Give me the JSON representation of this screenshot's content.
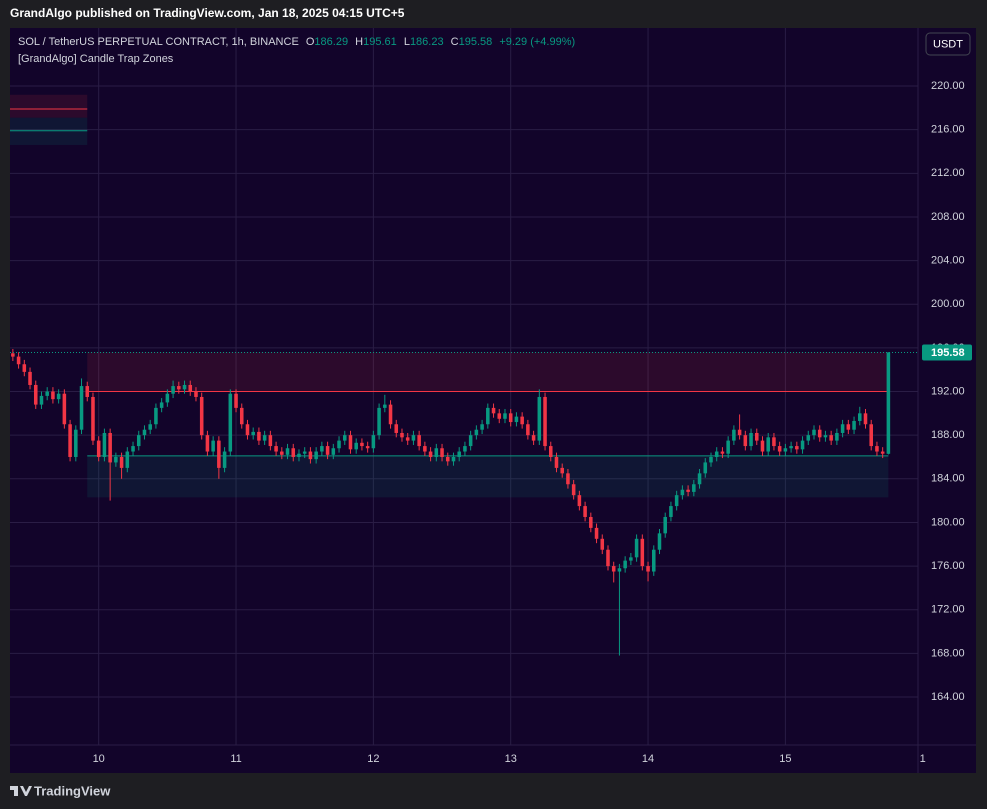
{
  "header": {
    "published": "GrandAlgo published on TradingView.com, Jan 18, 2025 04:15 UTC+5"
  },
  "chart_data": {
    "type": "candlestick",
    "symbol": "SOL / TetherUS PERPETUAL CONTRACT, 1h, BINANCE",
    "ohlc_labels": [
      "O",
      "H",
      "L",
      "C"
    ],
    "change": "+9.29 (+4.99%)",
    "indicator": "[GrandAlgo] Candle Trap Zones",
    "currency": "USDT",
    "open": [
      195.5,
      195.2,
      194.5,
      193.8,
      192.6,
      190.8,
      191.6,
      192.0,
      191.3,
      191.8,
      189.0,
      186.0,
      188.5,
      192.5,
      191.5,
      187.5,
      186.0,
      188.2,
      185.5,
      186.0,
      185.0,
      186.5,
      187.0,
      188.0,
      188.5,
      189.0,
      190.5,
      191.0,
      191.8,
      192.5,
      192.2,
      192.6,
      192.0,
      191.5,
      188.0,
      186.5,
      187.5,
      185.0,
      186.5,
      191.8,
      190.5,
      189.0,
      188.0,
      188.3,
      187.5,
      188.0,
      187.0,
      186.5,
      186.2,
      186.8,
      186.0,
      186.3,
      186.5,
      185.8,
      186.5,
      187.0,
      186.2,
      186.8,
      187.5,
      188.0,
      186.7,
      187.3,
      187.0,
      186.8,
      188.0,
      190.5,
      190.8,
      189.0,
      188.2,
      187.8,
      187.5,
      188.0,
      187.0,
      186.5,
      186.0,
      186.8,
      186.0,
      185.6,
      186.0,
      186.5,
      187.0,
      188.0,
      188.5,
      189.0,
      190.5,
      190.0,
      189.5,
      190.0,
      189.2,
      189.7,
      189.0,
      188.0,
      187.5,
      191.5,
      187.0,
      186.0,
      185.0,
      184.5,
      183.5,
      182.5,
      181.5,
      180.5,
      179.5,
      178.5,
      177.5,
      176.0,
      175.5,
      175.8,
      176.5,
      176.8,
      178.5,
      176.0,
      175.5,
      177.5,
      179.0,
      180.5,
      181.5,
      182.5,
      183.0,
      182.8,
      183.5,
      184.5,
      185.5,
      186.0,
      186.5,
      186.3,
      187.5,
      188.5,
      188.0,
      187.0,
      188.2,
      187.5,
      186.5,
      187.8,
      187.0,
      186.5,
      186.8,
      187.0,
      186.7,
      187.5,
      188.0,
      188.5,
      187.8,
      188.0,
      187.5,
      188.2,
      189.0,
      188.5,
      189.3,
      190.0,
      189.0,
      187.0,
      186.5,
      186.29
    ],
    "high": [
      195.9,
      195.6,
      194.9,
      194.2,
      193.0,
      192.0,
      192.4,
      192.4,
      192.2,
      192.2,
      189.4,
      188.9,
      193.2,
      192.9,
      191.9,
      187.9,
      188.6,
      188.6,
      186.4,
      186.4,
      186.9,
      187.4,
      188.4,
      188.9,
      189.4,
      190.9,
      191.4,
      192.2,
      193.0,
      192.9,
      193.0,
      193.0,
      192.4,
      191.9,
      188.4,
      187.9,
      187.9,
      186.9,
      192.2,
      192.2,
      190.9,
      189.4,
      188.7,
      188.7,
      188.4,
      188.4,
      187.4,
      186.9,
      187.2,
      187.2,
      186.7,
      186.9,
      186.9,
      186.9,
      187.4,
      187.4,
      187.2,
      187.9,
      188.4,
      188.4,
      187.7,
      187.7,
      187.4,
      188.4,
      190.9,
      191.7,
      191.2,
      189.4,
      188.6,
      188.2,
      188.4,
      188.4,
      187.4,
      186.9,
      187.2,
      187.2,
      186.4,
      186.4,
      186.9,
      187.4,
      188.4,
      188.9,
      189.4,
      190.9,
      190.9,
      190.4,
      190.4,
      190.4,
      190.1,
      190.1,
      189.4,
      188.4,
      192.2,
      191.9,
      187.4,
      186.4,
      185.4,
      184.9,
      183.9,
      182.9,
      181.9,
      180.9,
      179.9,
      178.9,
      177.9,
      176.4,
      176.2,
      176.9,
      177.2,
      178.9,
      178.9,
      176.4,
      177.9,
      179.4,
      180.9,
      181.9,
      182.9,
      183.4,
      183.4,
      183.9,
      184.9,
      185.9,
      186.4,
      186.9,
      186.9,
      187.9,
      188.9,
      189.9,
      188.4,
      188.6,
      188.6,
      187.9,
      188.2,
      188.2,
      187.4,
      187.2,
      187.4,
      187.4,
      187.9,
      188.4,
      188.9,
      188.9,
      188.4,
      188.4,
      188.6,
      189.4,
      189.4,
      189.7,
      190.6,
      190.4,
      189.4,
      187.4,
      186.9,
      195.61
    ],
    "low": [
      194.8,
      194.1,
      193.4,
      192.2,
      190.4,
      190.4,
      191.2,
      190.9,
      190.9,
      188.6,
      185.6,
      185.6,
      188.1,
      191.1,
      187.1,
      185.6,
      185.6,
      182.0,
      185.1,
      184.0,
      184.6,
      186.1,
      186.6,
      187.6,
      188.1,
      188.6,
      190.1,
      190.6,
      191.4,
      191.8,
      191.8,
      191.6,
      191.1,
      187.6,
      186.1,
      186.1,
      184.0,
      184.6,
      186.1,
      190.1,
      188.6,
      187.6,
      187.6,
      187.1,
      187.1,
      186.6,
      186.1,
      185.8,
      185.8,
      185.6,
      185.6,
      185.9,
      185.4,
      185.4,
      186.1,
      185.8,
      185.8,
      186.4,
      187.1,
      186.3,
      186.3,
      186.6,
      186.4,
      186.4,
      187.6,
      190.1,
      188.6,
      187.8,
      187.4,
      187.1,
      187.1,
      186.6,
      186.1,
      185.6,
      185.6,
      185.6,
      185.2,
      185.2,
      185.6,
      186.1,
      186.6,
      187.6,
      188.1,
      188.6,
      189.6,
      189.1,
      189.1,
      188.8,
      188.8,
      188.6,
      187.6,
      187.1,
      187.1,
      186.6,
      185.6,
      184.6,
      184.1,
      183.1,
      182.1,
      181.1,
      180.1,
      179.1,
      178.1,
      177.1,
      175.6,
      174.5,
      167.8,
      175.4,
      176.1,
      176.4,
      175.6,
      174.6,
      175.1,
      177.1,
      178.6,
      180.1,
      181.1,
      182.1,
      182.4,
      182.4,
      183.1,
      184.1,
      185.1,
      185.6,
      185.9,
      185.9,
      187.1,
      187.6,
      186.6,
      186.6,
      187.1,
      186.1,
      186.1,
      186.6,
      186.1,
      186.1,
      186.4,
      186.3,
      186.3,
      187.1,
      187.6,
      187.4,
      187.4,
      187.1,
      187.1,
      187.8,
      188.1,
      188.1,
      188.9,
      188.6,
      186.6,
      186.1,
      185.9,
      186.23
    ],
    "close": [
      195.2,
      194.5,
      193.8,
      192.6,
      190.8,
      191.6,
      192.0,
      191.3,
      191.8,
      189.0,
      186.0,
      188.5,
      192.5,
      191.5,
      187.5,
      186.0,
      188.2,
      185.5,
      186.0,
      185.0,
      186.5,
      187.0,
      188.0,
      188.5,
      189.0,
      190.5,
      191.0,
      191.8,
      192.5,
      192.2,
      192.6,
      192.0,
      191.5,
      188.0,
      186.5,
      187.5,
      185.0,
      186.5,
      191.8,
      190.5,
      189.0,
      188.0,
      188.3,
      187.5,
      188.0,
      187.0,
      186.5,
      186.2,
      186.8,
      186.0,
      186.3,
      186.5,
      185.8,
      186.5,
      187.0,
      186.2,
      186.8,
      187.5,
      188.0,
      186.7,
      187.3,
      187.0,
      186.8,
      188.0,
      190.5,
      190.8,
      189.0,
      188.2,
      187.8,
      187.5,
      188.0,
      187.0,
      186.5,
      186.0,
      186.8,
      186.0,
      185.6,
      186.0,
      186.5,
      187.0,
      188.0,
      188.5,
      189.0,
      190.5,
      190.0,
      189.5,
      190.0,
      189.2,
      189.7,
      189.0,
      188.0,
      187.5,
      191.5,
      187.0,
      186.0,
      185.0,
      184.5,
      183.5,
      182.5,
      181.5,
      180.5,
      179.5,
      178.5,
      177.5,
      176.0,
      175.5,
      175.8,
      176.5,
      176.8,
      178.5,
      176.0,
      175.5,
      177.5,
      179.0,
      180.5,
      181.5,
      182.5,
      183.0,
      182.8,
      183.5,
      184.5,
      185.5,
      186.0,
      186.5,
      186.3,
      187.5,
      188.5,
      188.0,
      187.0,
      188.2,
      187.5,
      186.5,
      187.8,
      187.0,
      186.5,
      186.8,
      187.0,
      186.7,
      187.5,
      188.0,
      188.5,
      187.8,
      188.0,
      187.5,
      188.2,
      189.0,
      188.5,
      189.3,
      190.0,
      189.0,
      187.0,
      186.5,
      186.3,
      195.58
    ],
    "up_color": "#089981",
    "down_color": "#f23645",
    "xlim": [
      -0.5,
      158.7
    ],
    "xticks": [
      {
        "value": 15,
        "label": "10"
      },
      {
        "value": 39,
        "label": "11"
      },
      {
        "value": 63,
        "label": "12"
      },
      {
        "value": 87,
        "label": "13"
      },
      {
        "value": 111,
        "label": "14"
      },
      {
        "value": 135,
        "label": "15"
      },
      {
        "value": 159,
        "label": "1"
      }
    ],
    "ylim": [
      159.6,
      225.32
    ],
    "yticks": [
      {
        "value": 164,
        "label": "164.00"
      },
      {
        "value": 168,
        "label": "168.00"
      },
      {
        "value": 172,
        "label": "172.00"
      },
      {
        "value": 176,
        "label": "176.00"
      },
      {
        "value": 180,
        "label": "180.00"
      },
      {
        "value": 184,
        "label": "184.00"
      },
      {
        "value": 188,
        "label": "188.00"
      },
      {
        "value": 192,
        "label": "192.00"
      },
      {
        "value": 196,
        "label": "196.00"
      },
      {
        "value": 200,
        "label": "200.00"
      },
      {
        "value": 204,
        "label": "204.00"
      },
      {
        "value": 208,
        "label": "208.00"
      },
      {
        "value": 212,
        "label": "212.00"
      },
      {
        "value": 216,
        "label": "216.00"
      },
      {
        "value": 220,
        "label": "220.00"
      }
    ],
    "grid": true,
    "zones": [
      {
        "top": 219.2,
        "bottom": 217.1,
        "line": 217.9,
        "start": -0.5,
        "end": 13,
        "color": "#f23645"
      },
      {
        "top": 217.1,
        "bottom": 214.6,
        "line": 215.9,
        "start": -0.5,
        "end": 13,
        "color": "#089981"
      },
      {
        "top": 195.6,
        "bottom": 192.0,
        "line": 192.0,
        "start": 13,
        "end": 153,
        "color": "#f23645"
      },
      {
        "top": 186.1,
        "bottom": 182.3,
        "line": 186.1,
        "start": 13,
        "end": 153,
        "color": "#089981"
      }
    ]
  },
  "footer": {
    "brand": "TradingView"
  }
}
